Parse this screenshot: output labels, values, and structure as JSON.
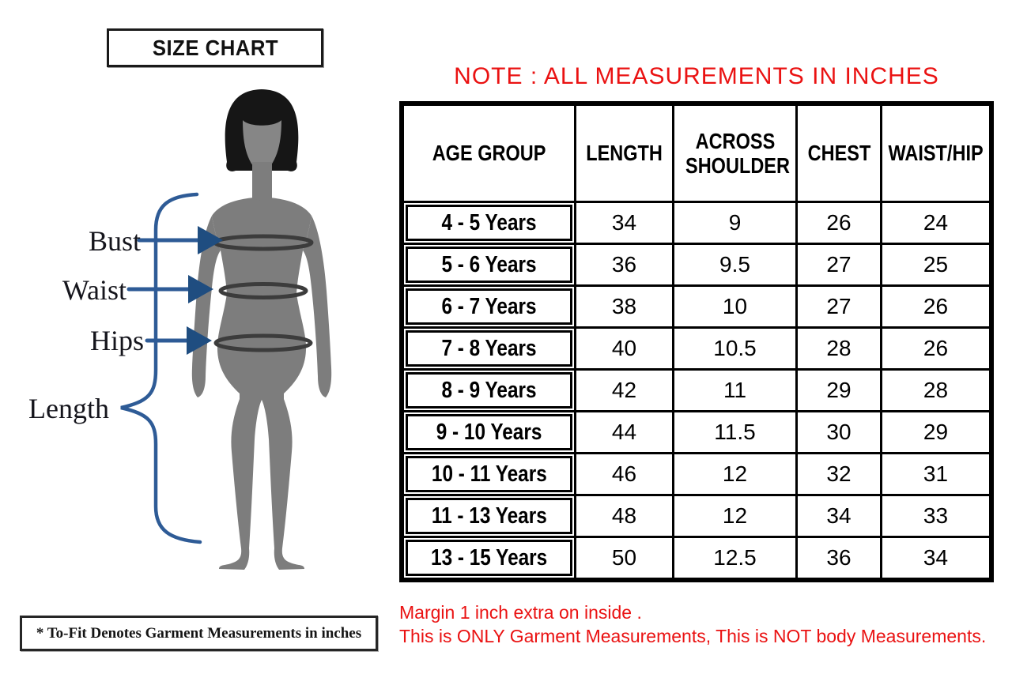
{
  "title_box": {
    "label": "SIZE CHART"
  },
  "note_top": "NOTE : ALL MEASUREMENTS IN INCHES",
  "diagram": {
    "illustration": "child-body-silhouette",
    "labels": {
      "bust": "Bust",
      "waist": "Waist",
      "hips": "Hips",
      "length": "Length"
    }
  },
  "footnote_box": "* To-Fit Denotes Garment Measurements in inches",
  "notes_bottom": [
    "Margin 1 inch extra on inside .",
    "This is ONLY Garment Measurements, This is NOT body Measurements."
  ],
  "colors": {
    "note_red": "#ea1212",
    "table_lines": "#000000",
    "arrow_blue": "#2e5b96",
    "arrowhead_blue": "#1f4d80",
    "silhouette_gray": "#7d7d7d",
    "hair_black": "#161616",
    "measure_band": "#3c3c3c"
  },
  "chart_data": {
    "type": "table",
    "title": "SIZE CHART",
    "units": "inches",
    "columns": [
      "AGE GROUP",
      "LENGTH",
      "ACROSS SHOULDER",
      "CHEST",
      "WAIST/HIP"
    ],
    "rows": [
      [
        "4 - 5 Years",
        "34",
        "9",
        "26",
        "24"
      ],
      [
        "5 - 6 Years",
        "36",
        "9.5",
        "27",
        "25"
      ],
      [
        "6 - 7 Years",
        "38",
        "10",
        "27",
        "26"
      ],
      [
        "7 - 8 Years",
        "40",
        "10.5",
        "28",
        "26"
      ],
      [
        "8 - 9 Years",
        "42",
        "11",
        "29",
        "28"
      ],
      [
        "9 - 10 Years",
        "44",
        "11.5",
        "30",
        "29"
      ],
      [
        "10 - 11 Years",
        "46",
        "12",
        "32",
        "31"
      ],
      [
        "11 - 13 Years",
        "48",
        "12",
        "34",
        "33"
      ],
      [
        "13 - 15 Years",
        "50",
        "12.5",
        "36",
        "34"
      ]
    ]
  }
}
